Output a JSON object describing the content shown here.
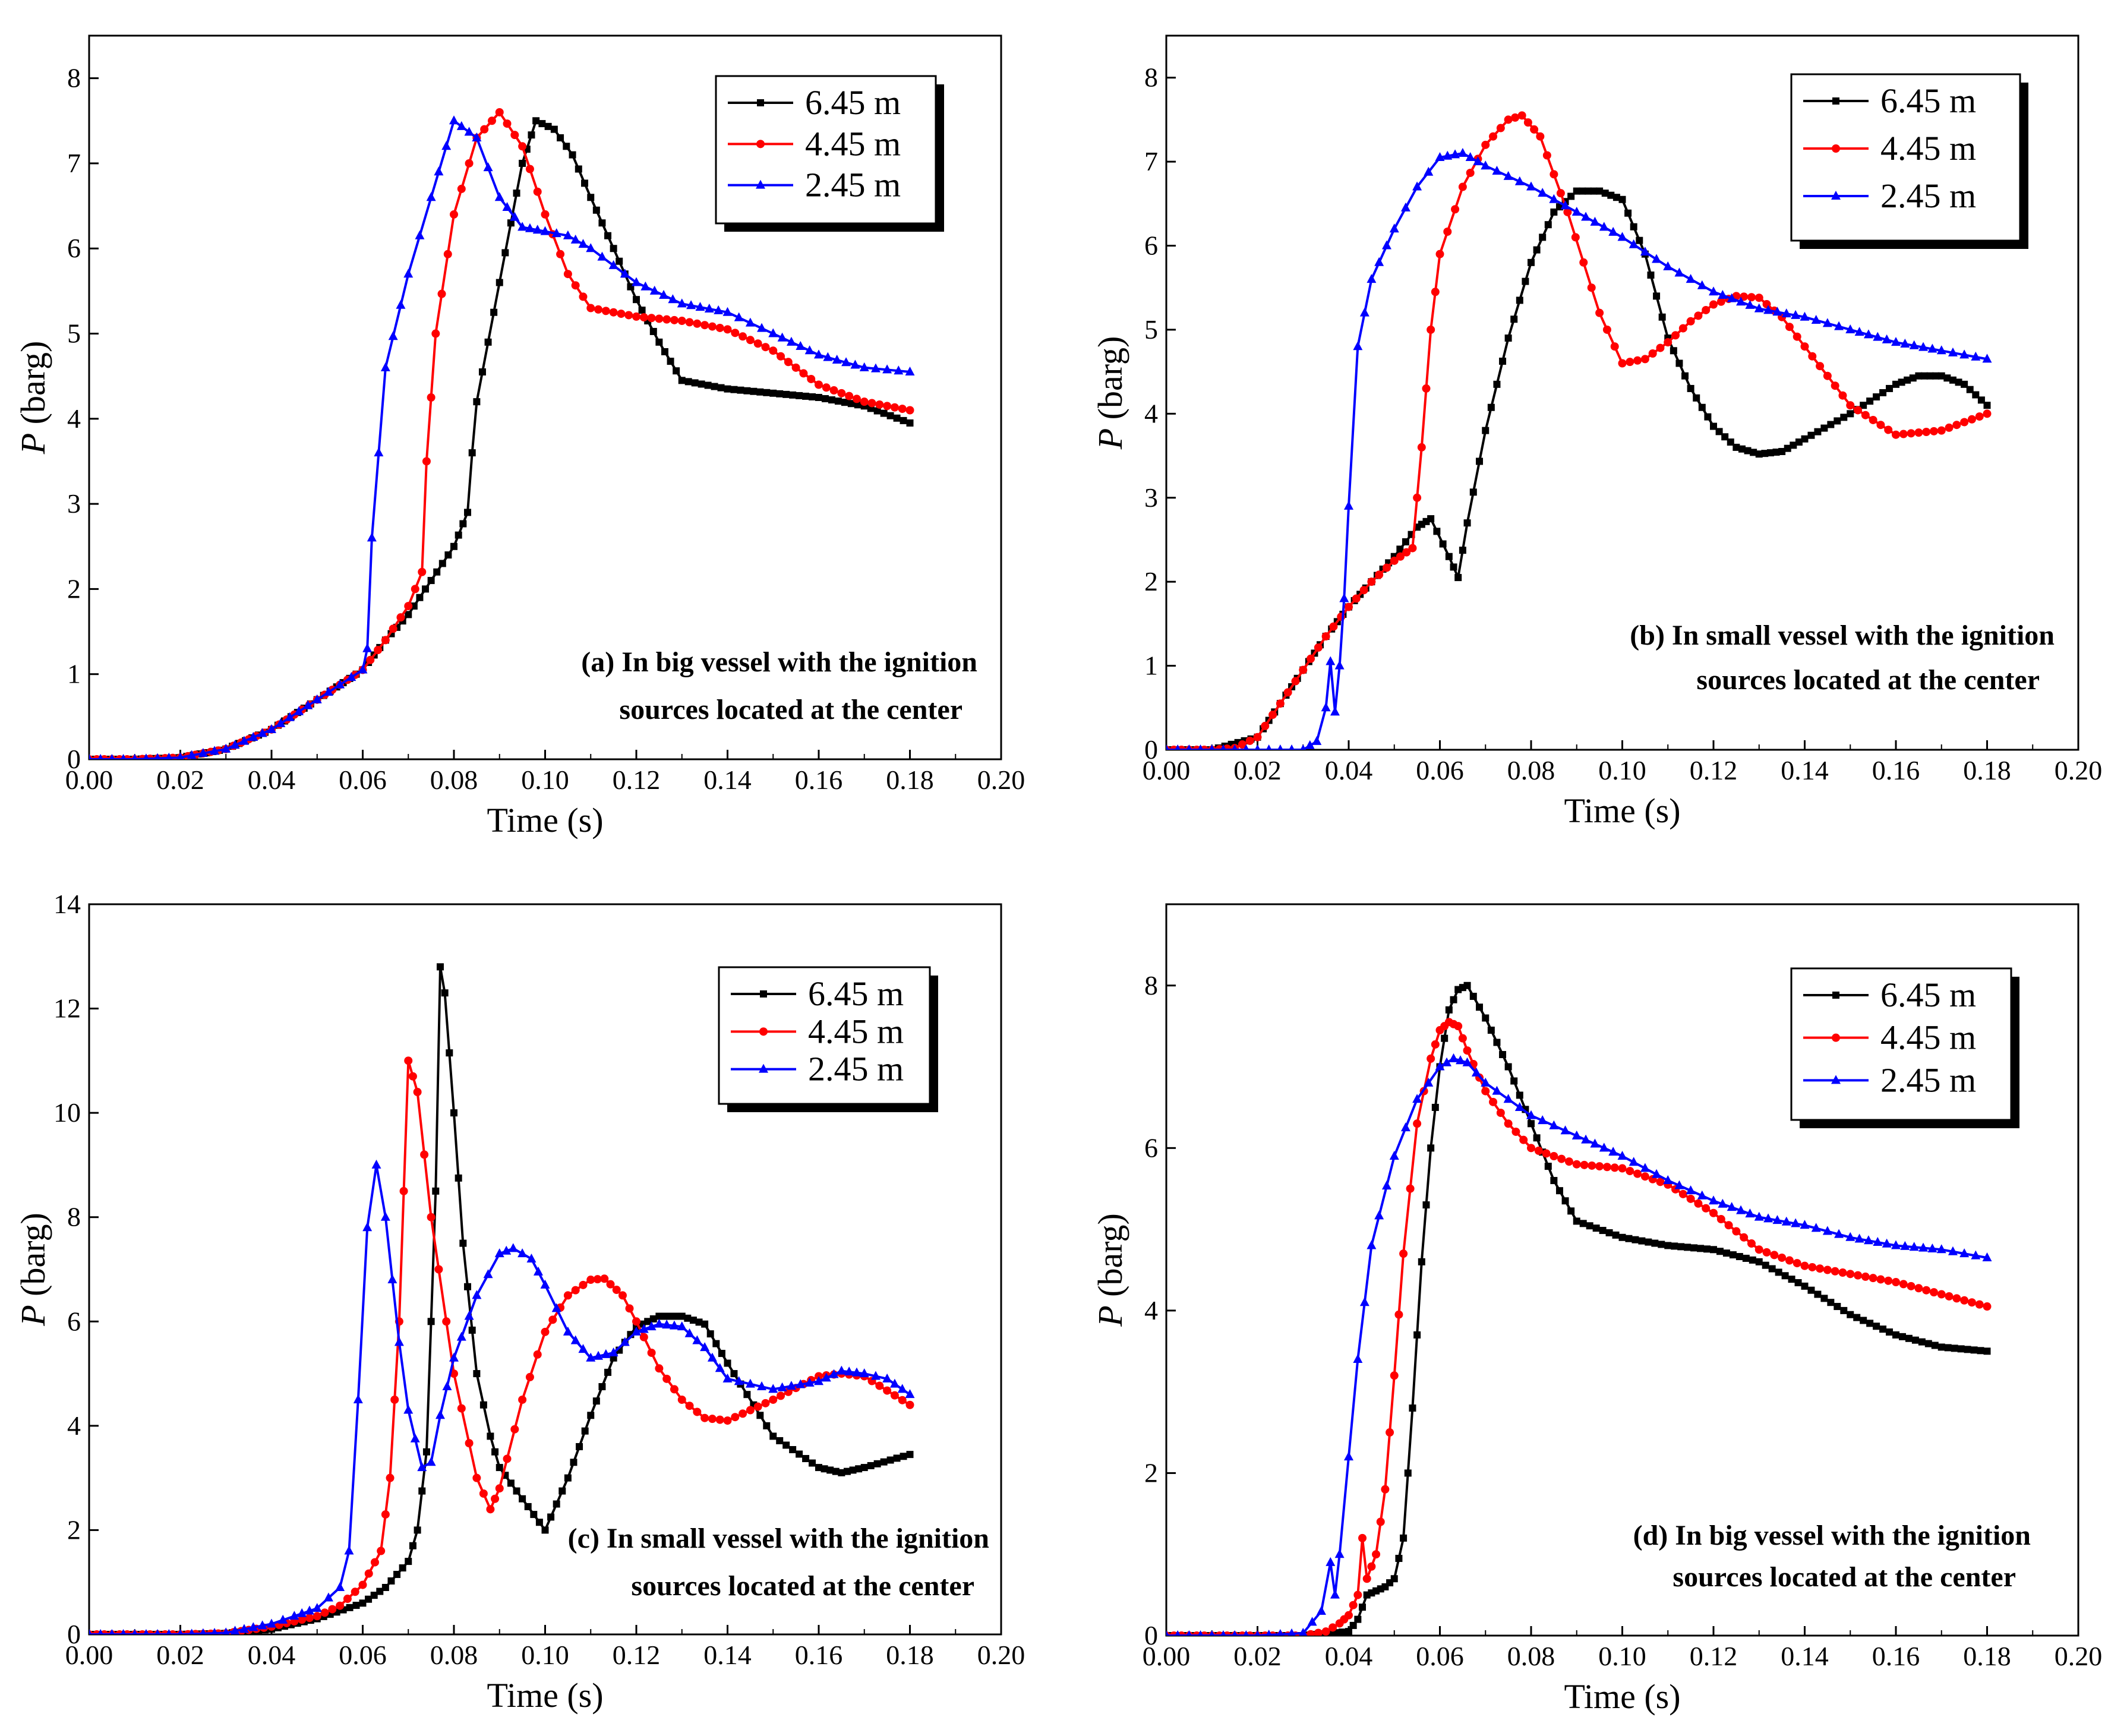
{
  "colors": {
    "s645": "#000000",
    "s445": "#ff0000",
    "s245": "#0000ff"
  },
  "chart_data": [
    {
      "id": "a",
      "type": "line",
      "xlabel": "Time (s)",
      "ylabel_italic": "P",
      "ylabel_unit": " (barg)",
      "xlim": [
        0,
        0.2
      ],
      "ylim": [
        0,
        8.5
      ],
      "xticks": [
        "0.00",
        "0.02",
        "0.04",
        "0.06",
        "0.08",
        "0.10",
        "0.12",
        "0.14",
        "0.16",
        "0.18",
        "0.20"
      ],
      "yticks": [
        "0",
        "1",
        "2",
        "3",
        "4",
        "5",
        "6",
        "7",
        "8"
      ],
      "annotation": [
        "(a) In big vessel with the ignition",
        "sources located at the center"
      ],
      "series": [
        {
          "name": "6.45 m",
          "marker": "square",
          "x": [
            0,
            0.01,
            0.02,
            0.03,
            0.04,
            0.05,
            0.06,
            0.065,
            0.07,
            0.075,
            0.08,
            0.083,
            0.084,
            0.085,
            0.09,
            0.095,
            0.098,
            0.102,
            0.106,
            0.11,
            0.115,
            0.12,
            0.125,
            0.13,
            0.14,
            0.15,
            0.16,
            0.17,
            0.18
          ],
          "y": [
            0,
            0,
            0.02,
            0.12,
            0.35,
            0.7,
            1.05,
            1.4,
            1.7,
            2.1,
            2.5,
            2.9,
            3.6,
            4.2,
            5.6,
            7.0,
            7.5,
            7.4,
            7.1,
            6.6,
            6.0,
            5.4,
            4.9,
            4.45,
            4.35,
            4.3,
            4.25,
            4.15,
            3.95
          ]
        },
        {
          "name": "4.45 m",
          "marker": "circle",
          "x": [
            0,
            0.01,
            0.02,
            0.03,
            0.04,
            0.05,
            0.06,
            0.065,
            0.07,
            0.073,
            0.074,
            0.076,
            0.08,
            0.085,
            0.09,
            0.095,
            0.1,
            0.105,
            0.11,
            0.12,
            0.13,
            0.14,
            0.15,
            0.16,
            0.17,
            0.18
          ],
          "y": [
            0,
            0,
            0.02,
            0.12,
            0.35,
            0.7,
            1.05,
            1.4,
            1.8,
            2.2,
            3.5,
            5.0,
            6.4,
            7.3,
            7.6,
            7.2,
            6.4,
            5.7,
            5.3,
            5.2,
            5.15,
            5.05,
            4.8,
            4.4,
            4.2,
            4.1
          ]
        },
        {
          "name": "2.45 m",
          "marker": "triangle",
          "x": [
            0,
            0.01,
            0.02,
            0.03,
            0.04,
            0.05,
            0.06,
            0.061,
            0.062,
            0.065,
            0.07,
            0.075,
            0.08,
            0.085,
            0.09,
            0.095,
            0.1,
            0.105,
            0.11,
            0.12,
            0.13,
            0.14,
            0.15,
            0.16,
            0.17,
            0.18
          ],
          "y": [
            0,
            0,
            0.02,
            0.12,
            0.35,
            0.7,
            1.05,
            1.3,
            2.6,
            4.6,
            5.7,
            6.6,
            7.5,
            7.3,
            6.6,
            6.25,
            6.2,
            6.15,
            6.0,
            5.6,
            5.35,
            5.25,
            5.0,
            4.75,
            4.6,
            4.55
          ]
        }
      ]
    },
    {
      "id": "b",
      "type": "line",
      "xlabel": "Time (s)",
      "ylabel_italic": "P",
      "ylabel_unit": " (barg)",
      "xlim": [
        0,
        0.2
      ],
      "ylim": [
        0,
        8.5
      ],
      "xticks": [
        "0.00",
        "0.02",
        "0.04",
        "0.06",
        "0.08",
        "0.10",
        "0.12",
        "0.14",
        "0.16",
        "0.18",
        "0.20"
      ],
      "yticks": [
        "0",
        "1",
        "2",
        "3",
        "4",
        "5",
        "6",
        "7",
        "8"
      ],
      "annotation": [
        "(b) In small vessel with the ignition",
        "sources located at the center"
      ],
      "series": [
        {
          "name": "6.45 m",
          "marker": "square",
          "x": [
            0,
            0.01,
            0.02,
            0.025,
            0.03,
            0.035,
            0.04,
            0.045,
            0.05,
            0.055,
            0.058,
            0.062,
            0.064,
            0.066,
            0.07,
            0.075,
            0.08,
            0.085,
            0.09,
            0.095,
            0.1,
            0.105,
            0.11,
            0.115,
            0.12,
            0.125,
            0.13,
            0.135,
            0.14,
            0.15,
            0.16,
            0.165,
            0.17,
            0.175,
            0.18
          ],
          "y": [
            0,
            0,
            0.15,
            0.55,
            0.95,
            1.35,
            1.7,
            2.0,
            2.3,
            2.65,
            2.75,
            2.3,
            2.05,
            2.7,
            3.8,
            4.9,
            5.8,
            6.4,
            6.65,
            6.65,
            6.55,
            5.9,
            4.9,
            4.3,
            3.85,
            3.6,
            3.52,
            3.55,
            3.7,
            4.0,
            4.35,
            4.45,
            4.45,
            4.35,
            4.1
          ]
        },
        {
          "name": "4.45 m",
          "marker": "circle",
          "x": [
            0,
            0.01,
            0.015,
            0.02,
            0.025,
            0.03,
            0.035,
            0.04,
            0.045,
            0.05,
            0.054,
            0.056,
            0.058,
            0.06,
            0.065,
            0.07,
            0.075,
            0.078,
            0.082,
            0.088,
            0.095,
            0.1,
            0.105,
            0.11,
            0.115,
            0.12,
            0.125,
            0.13,
            0.135,
            0.14,
            0.15,
            0.16,
            0.17,
            0.18
          ],
          "y": [
            0,
            0,
            0.02,
            0.15,
            0.55,
            0.95,
            1.35,
            1.7,
            2.0,
            2.25,
            2.4,
            3.6,
            5.0,
            5.9,
            6.7,
            7.2,
            7.5,
            7.55,
            7.3,
            6.4,
            5.2,
            4.6,
            4.65,
            4.85,
            5.1,
            5.3,
            5.4,
            5.38,
            5.15,
            4.8,
            4.1,
            3.75,
            3.8,
            4.0
          ]
        },
        {
          "name": "2.45 m",
          "marker": "triangle",
          "x": [
            0,
            0.01,
            0.02,
            0.03,
            0.033,
            0.035,
            0.036,
            0.037,
            0.038,
            0.039,
            0.04,
            0.042,
            0.045,
            0.05,
            0.055,
            0.06,
            0.065,
            0.07,
            0.08,
            0.09,
            0.1,
            0.11,
            0.12,
            0.13,
            0.14,
            0.15,
            0.16,
            0.17,
            0.18
          ],
          "y": [
            0,
            0,
            0,
            0,
            0.1,
            0.5,
            1.05,
            0.45,
            1.0,
            1.8,
            2.9,
            4.8,
            5.6,
            6.2,
            6.7,
            7.05,
            7.1,
            6.95,
            6.7,
            6.4,
            6.1,
            5.75,
            5.45,
            5.25,
            5.15,
            5.0,
            4.85,
            4.75,
            4.65
          ]
        }
      ]
    },
    {
      "id": "c",
      "type": "line",
      "xlabel": "Time (s)",
      "ylabel_italic": "P",
      "ylabel_unit": " (barg)",
      "xlim": [
        0,
        0.2
      ],
      "ylim": [
        0,
        14
      ],
      "xticks": [
        "0.00",
        "0.02",
        "0.04",
        "0.06",
        "0.08",
        "0.10",
        "0.12",
        "0.14",
        "0.16",
        "0.18",
        "0.20"
      ],
      "yticks": [
        "0",
        "2",
        "4",
        "6",
        "8",
        "10",
        "12",
        "14"
      ],
      "annotation": [
        "(c) In small vessel with the ignition",
        "sources located at the center"
      ],
      "series": [
        {
          "name": "6.45 m",
          "marker": "square",
          "x": [
            0,
            0.01,
            0.02,
            0.03,
            0.04,
            0.05,
            0.06,
            0.065,
            0.07,
            0.072,
            0.074,
            0.076,
            0.077,
            0.078,
            0.08,
            0.082,
            0.085,
            0.088,
            0.09,
            0.095,
            0.1,
            0.105,
            0.11,
            0.115,
            0.12,
            0.125,
            0.13,
            0.135,
            0.14,
            0.15,
            0.16,
            0.165,
            0.17,
            0.18
          ],
          "y": [
            0,
            0,
            0,
            0.02,
            0.1,
            0.3,
            0.6,
            0.9,
            1.4,
            2.0,
            3.5,
            8.5,
            12.8,
            12.3,
            10.0,
            7.5,
            5.0,
            3.8,
            3.2,
            2.6,
            2.0,
            3.0,
            4.2,
            5.3,
            5.9,
            6.1,
            6.1,
            5.95,
            5.2,
            3.8,
            3.2,
            3.1,
            3.2,
            3.45
          ]
        },
        {
          "name": "4.45 m",
          "marker": "circle",
          "x": [
            0,
            0.01,
            0.02,
            0.03,
            0.04,
            0.05,
            0.055,
            0.06,
            0.064,
            0.066,
            0.068,
            0.07,
            0.072,
            0.075,
            0.08,
            0.085,
            0.088,
            0.09,
            0.095,
            0.1,
            0.105,
            0.11,
            0.113,
            0.117,
            0.12,
            0.125,
            0.13,
            0.135,
            0.14,
            0.15,
            0.16,
            0.165,
            0.17,
            0.18
          ],
          "y": [
            0,
            0,
            0,
            0.02,
            0.15,
            0.35,
            0.55,
            0.95,
            1.6,
            3.0,
            6.0,
            11.0,
            10.4,
            8.0,
            5.0,
            3.0,
            2.4,
            2.8,
            4.5,
            5.8,
            6.5,
            6.8,
            6.82,
            6.5,
            6.0,
            5.1,
            4.5,
            4.15,
            4.1,
            4.5,
            4.95,
            5.0,
            4.95,
            4.4
          ]
        },
        {
          "name": "2.45 m",
          "marker": "triangle",
          "x": [
            0,
            0.01,
            0.02,
            0.03,
            0.04,
            0.045,
            0.05,
            0.055,
            0.057,
            0.059,
            0.061,
            0.063,
            0.065,
            0.068,
            0.07,
            0.073,
            0.075,
            0.077,
            0.08,
            0.085,
            0.09,
            0.093,
            0.097,
            0.1,
            0.105,
            0.11,
            0.115,
            0.12,
            0.125,
            0.13,
            0.135,
            0.14,
            0.15,
            0.16,
            0.165,
            0.17,
            0.175,
            0.18
          ],
          "y": [
            0,
            0,
            0,
            0.03,
            0.2,
            0.35,
            0.5,
            0.9,
            1.6,
            4.5,
            7.8,
            9.0,
            8.0,
            5.6,
            4.3,
            3.2,
            3.3,
            4.2,
            5.3,
            6.5,
            7.3,
            7.4,
            7.2,
            6.7,
            5.8,
            5.3,
            5.4,
            5.8,
            5.95,
            5.9,
            5.5,
            4.9,
            4.7,
            4.85,
            5.05,
            5.0,
            4.9,
            4.6
          ]
        }
      ]
    },
    {
      "id": "d",
      "type": "line",
      "xlabel": "Time (s)",
      "ylabel_italic": "P",
      "ylabel_unit": " (barg)",
      "xlim": [
        0,
        0.2
      ],
      "ylim": [
        0,
        9
      ],
      "xticks": [
        "0.00",
        "0.02",
        "0.04",
        "0.06",
        "0.08",
        "0.10",
        "0.12",
        "0.14",
        "0.16",
        "0.18",
        "0.20"
      ],
      "yticks": [
        "0",
        "2",
        "4",
        "6",
        "8"
      ],
      "annotation": [
        "(d) In big vessel with the ignition",
        "sources located at the center"
      ],
      "series": [
        {
          "name": "6.45 m",
          "marker": "square",
          "x": [
            0,
            0.01,
            0.02,
            0.03,
            0.04,
            0.042,
            0.044,
            0.046,
            0.048,
            0.05,
            0.052,
            0.054,
            0.056,
            0.058,
            0.06,
            0.062,
            0.064,
            0.066,
            0.07,
            0.075,
            0.08,
            0.085,
            0.09,
            0.1,
            0.11,
            0.12,
            0.13,
            0.14,
            0.15,
            0.16,
            0.17,
            0.18
          ],
          "y": [
            0,
            0,
            0,
            0,
            0.05,
            0.2,
            0.5,
            0.55,
            0.6,
            0.7,
            1.2,
            2.8,
            4.6,
            6.0,
            7.0,
            7.7,
            7.95,
            8.0,
            7.6,
            7.0,
            6.3,
            5.6,
            5.1,
            4.9,
            4.8,
            4.75,
            4.6,
            4.3,
            3.95,
            3.7,
            3.55,
            3.5
          ]
        },
        {
          "name": "4.45 m",
          "marker": "circle",
          "x": [
            0,
            0.01,
            0.02,
            0.03,
            0.035,
            0.038,
            0.04,
            0.042,
            0.043,
            0.044,
            0.046,
            0.048,
            0.05,
            0.052,
            0.055,
            0.058,
            0.06,
            0.062,
            0.064,
            0.066,
            0.07,
            0.075,
            0.08,
            0.09,
            0.1,
            0.11,
            0.12,
            0.13,
            0.14,
            0.15,
            0.16,
            0.17,
            0.18
          ],
          "y": [
            0,
            0,
            0,
            0,
            0.05,
            0.15,
            0.25,
            0.5,
            1.2,
            0.7,
            1.0,
            1.8,
            3.2,
            4.7,
            6.3,
            7.1,
            7.45,
            7.55,
            7.5,
            7.2,
            6.7,
            6.3,
            6.0,
            5.8,
            5.75,
            5.55,
            5.2,
            4.75,
            4.55,
            4.45,
            4.35,
            4.2,
            4.05
          ]
        },
        {
          "name": "2.45 m",
          "marker": "triangle",
          "x": [
            0,
            0.01,
            0.02,
            0.03,
            0.034,
            0.036,
            0.037,
            0.038,
            0.04,
            0.042,
            0.045,
            0.05,
            0.055,
            0.06,
            0.063,
            0.066,
            0.07,
            0.08,
            0.09,
            0.1,
            0.11,
            0.12,
            0.13,
            0.14,
            0.15,
            0.16,
            0.17,
            0.18
          ],
          "y": [
            0,
            0,
            0,
            0.03,
            0.3,
            0.9,
            0.5,
            1.0,
            2.2,
            3.4,
            4.8,
            5.9,
            6.6,
            7.0,
            7.1,
            7.05,
            6.8,
            6.4,
            6.15,
            5.9,
            5.6,
            5.35,
            5.15,
            5.05,
            4.9,
            4.8,
            4.75,
            4.65
          ]
        }
      ]
    }
  ]
}
